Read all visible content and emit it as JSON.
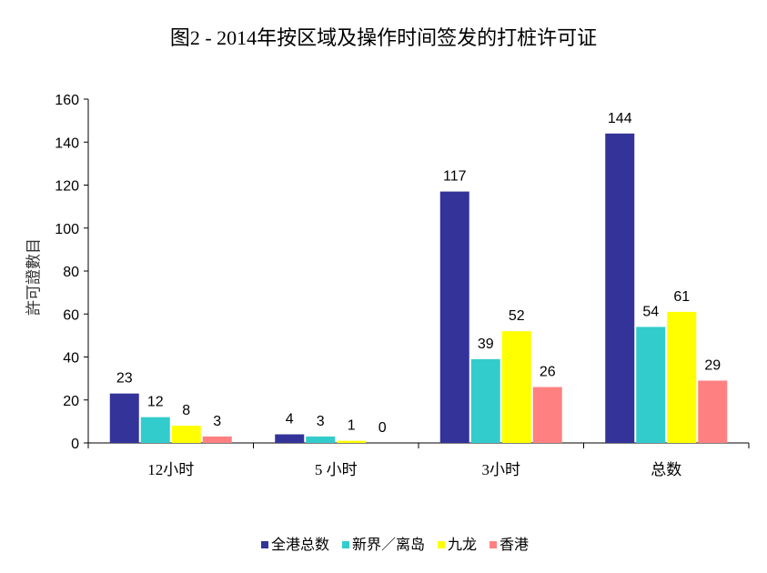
{
  "chart_data": {
    "type": "bar",
    "title": "图2 - 2014年按区域及操作时间签发的打桩许可证",
    "xlabel": "",
    "ylabel": "許可證數目",
    "ylim": [
      0,
      160
    ],
    "yticks": [
      0,
      20,
      40,
      60,
      80,
      100,
      120,
      140,
      160
    ],
    "categories": [
      "12小时",
      "5 小时",
      "3小时",
      "总数"
    ],
    "series": [
      {
        "name": "全港总数",
        "color": "#333399",
        "values": [
          23,
          4,
          117,
          144
        ]
      },
      {
        "name": "新界／离岛",
        "color": "#33CCCC",
        "values": [
          12,
          3,
          39,
          54
        ]
      },
      {
        "name": "九龙",
        "color": "#FFFF00",
        "values": [
          8,
          1,
          52,
          61
        ]
      },
      {
        "name": "香港",
        "color": "#FF8080",
        "values": [
          3,
          0,
          26,
          29
        ]
      }
    ],
    "legend_position": "bottom",
    "grid": false,
    "data_labels": true
  }
}
